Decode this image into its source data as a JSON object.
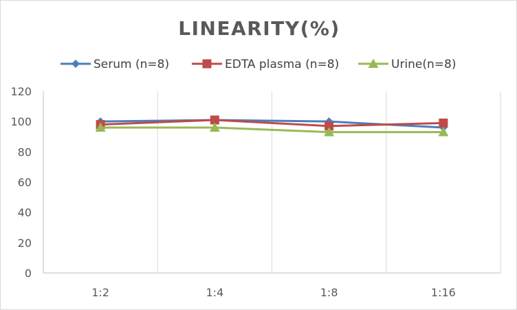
{
  "chart_data": {
    "type": "line",
    "title": "LINEARITY(%)",
    "xlabel": "",
    "ylabel": "",
    "categories": [
      "1:2",
      "1:4",
      "1:8",
      "1:16"
    ],
    "ylim": [
      0,
      120
    ],
    "yticks": [
      0,
      20,
      40,
      60,
      80,
      100,
      120
    ],
    "grid": "vertical",
    "legend_position": "top",
    "series": [
      {
        "name": "Serum (n=8)",
        "values": [
          100,
          101,
          100,
          96
        ],
        "color": "#4a7ebb",
        "marker": "diamond"
      },
      {
        "name": "EDTA plasma (n=8)",
        "values": [
          98,
          101,
          97,
          99
        ],
        "color": "#be4b48",
        "marker": "square"
      },
      {
        "name": "Urine(n=8)",
        "values": [
          96,
          96,
          93,
          93
        ],
        "color": "#98b954",
        "marker": "triangle"
      }
    ]
  }
}
